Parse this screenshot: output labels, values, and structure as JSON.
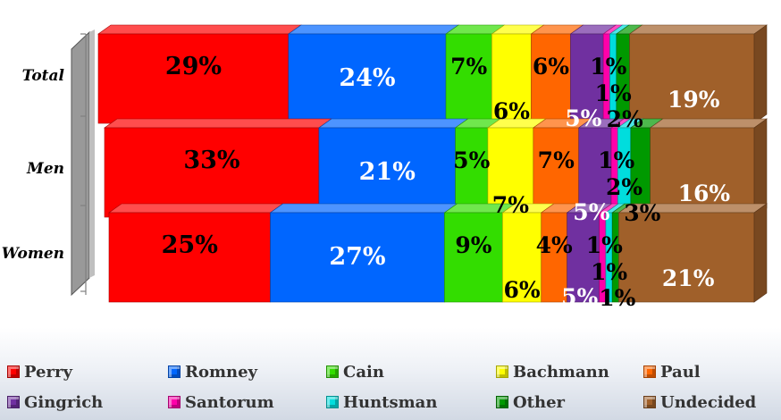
{
  "chart_data": {
    "type": "bar",
    "stacked": true,
    "orientation": "horizontal",
    "categories": [
      "Total",
      "Men",
      "Women"
    ],
    "series": [
      {
        "name": "Perry",
        "color": "#ff0000",
        "values": [
          29,
          33,
          25
        ]
      },
      {
        "name": "Romney",
        "color": "#0066ff",
        "values": [
          24,
          21,
          27
        ]
      },
      {
        "name": "Cain",
        "color": "#33dd00",
        "values": [
          7,
          5,
          9
        ]
      },
      {
        "name": "Bachmann",
        "color": "#ffff00",
        "values": [
          6,
          7,
          6
        ]
      },
      {
        "name": "Paul",
        "color": "#ff6600",
        "values": [
          6,
          7,
          4
        ]
      },
      {
        "name": "Gingrich",
        "color": "#7030a0",
        "values": [
          5,
          5,
          5
        ]
      },
      {
        "name": "Santorum",
        "color": "#ff00aa",
        "values": [
          1,
          1,
          1
        ]
      },
      {
        "name": "Huntsman",
        "color": "#00dddd",
        "values": [
          1,
          2,
          1
        ]
      },
      {
        "name": "Other",
        "color": "#009900",
        "values": [
          2,
          3,
          1
        ]
      },
      {
        "name": "Undecided",
        "color": "#a0602a",
        "values": [
          19,
          16,
          21
        ]
      }
    ],
    "data_labels": [
      [
        "29%",
        "24%",
        "7%",
        "6%",
        "6%",
        "5%",
        "1%",
        "1%",
        "2%",
        "19%"
      ],
      [
        "33%",
        "21%",
        "5%",
        "7%",
        "7%",
        "5%",
        "1%",
        "2%",
        "3%",
        "16%"
      ],
      [
        "25%",
        "27%",
        "9%",
        "6%",
        "4%",
        "5%",
        "1%",
        "1%",
        "1%",
        "21%"
      ]
    ],
    "title": "",
    "xlabel": "",
    "ylabel": "",
    "xlim": [
      0,
      100
    ],
    "legend_position": "bottom",
    "grid": false
  }
}
